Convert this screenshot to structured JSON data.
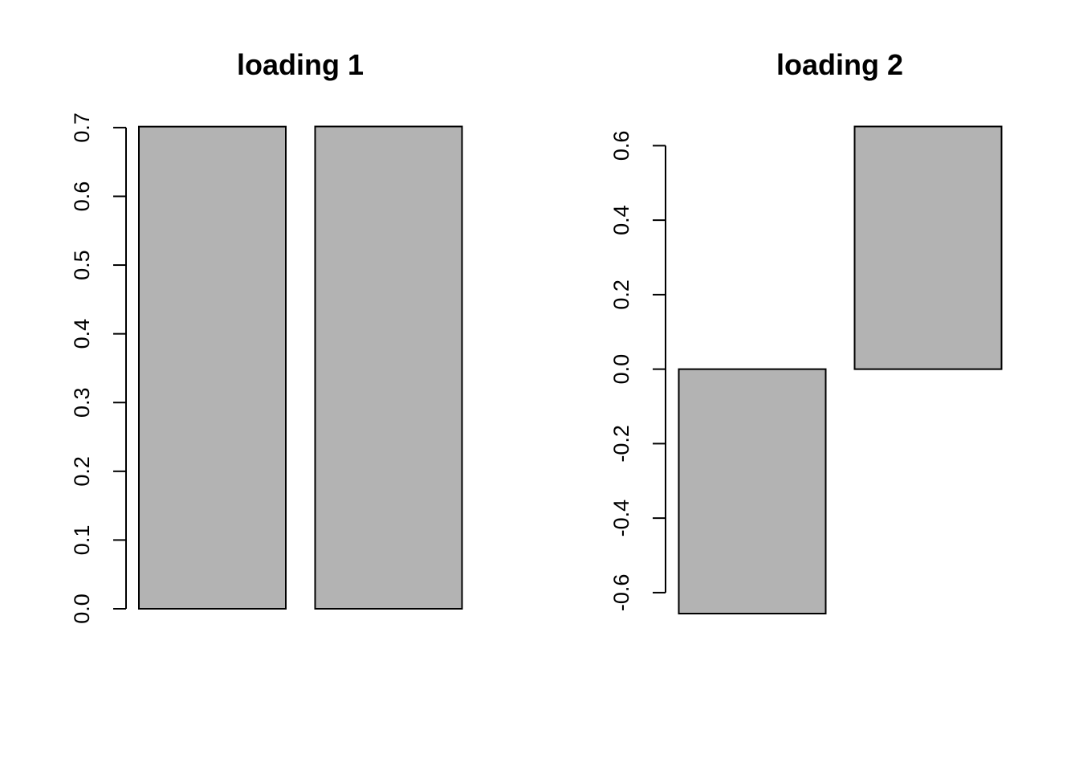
{
  "chart_data": [
    {
      "type": "bar",
      "title": "loading 1",
      "categories": [
        "",
        ""
      ],
      "values": [
        0.7014,
        0.7016
      ],
      "yticks": [
        "0.0",
        "0.1",
        "0.2",
        "0.3",
        "0.4",
        "0.5",
        "0.6",
        "0.7"
      ],
      "ylim": [
        0,
        0.7016
      ],
      "xlabel": "",
      "ylabel": "",
      "grid": false,
      "bar_color": "#b3b3b3"
    },
    {
      "type": "bar",
      "title": "loading 2",
      "categories": [
        "",
        ""
      ],
      "values": [
        -0.6563,
        0.6515
      ],
      "yticks": [
        "-0.6",
        "-0.4",
        "-0.2",
        "0.0",
        "0.2",
        "0.4",
        "0.6"
      ],
      "ylim": [
        -0.6563,
        0.6515
      ],
      "xlabel": "",
      "ylabel": "",
      "grid": false,
      "bar_color": "#b3b3b3"
    }
  ]
}
